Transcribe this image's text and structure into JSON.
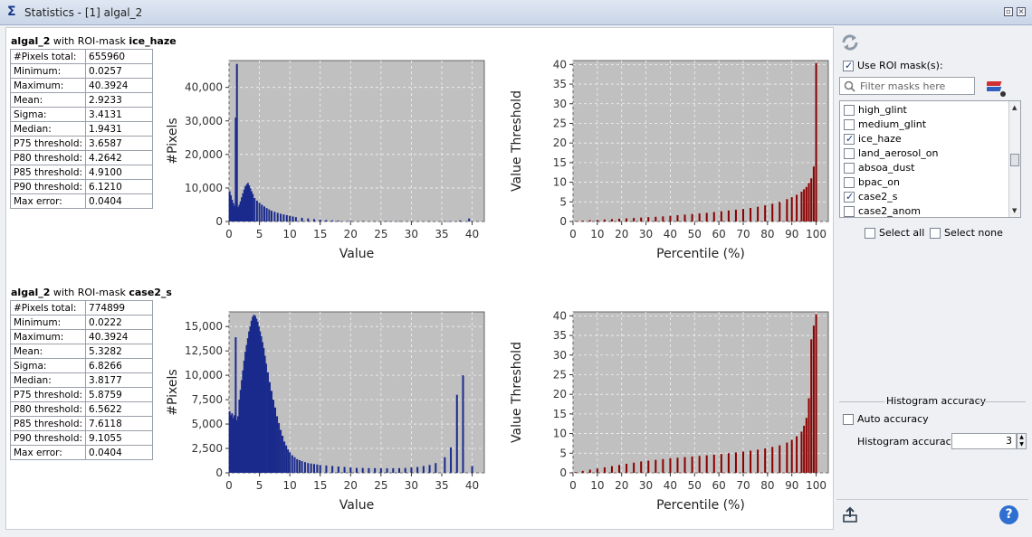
{
  "window": {
    "title": "Statistics - [1] algal_2",
    "minimize_glyph": "▫",
    "close_glyph": "×"
  },
  "blocks": [
    {
      "band": "algal_2",
      "with_text": " with ROI-mask ",
      "mask": "ice_haze",
      "stats": [
        {
          "k": "#Pixels total:",
          "v": "655960"
        },
        {
          "k": "Minimum:",
          "v": "0.0257"
        },
        {
          "k": "Maximum:",
          "v": "40.3924"
        },
        {
          "k": "Mean:",
          "v": "2.9233"
        },
        {
          "k": "Sigma:",
          "v": "3.4131"
        },
        {
          "k": "Median:",
          "v": "1.9431"
        },
        {
          "k": "P75 threshold:",
          "v": "3.6587"
        },
        {
          "k": "P80 threshold:",
          "v": "4.2642"
        },
        {
          "k": "P85 threshold:",
          "v": "4.9100"
        },
        {
          "k": "P90 threshold:",
          "v": "6.1210"
        },
        {
          "k": "Max error:",
          "v": "0.0404"
        }
      ]
    },
    {
      "band": "algal_2",
      "with_text": " with ROI-mask ",
      "mask": "case2_s",
      "stats": [
        {
          "k": "#Pixels total:",
          "v": "774899"
        },
        {
          "k": "Minimum:",
          "v": "0.0222"
        },
        {
          "k": "Maximum:",
          "v": "40.3924"
        },
        {
          "k": "Mean:",
          "v": "5.3282"
        },
        {
          "k": "Sigma:",
          "v": "6.8266"
        },
        {
          "k": "Median:",
          "v": "3.8177"
        },
        {
          "k": "P75 threshold:",
          "v": "5.8759"
        },
        {
          "k": "P80 threshold:",
          "v": "6.5622"
        },
        {
          "k": "P85 threshold:",
          "v": "7.6118"
        },
        {
          "k": "P90 threshold:",
          "v": "9.1055"
        },
        {
          "k": "Max error:",
          "v": "0.0404"
        }
      ]
    }
  ],
  "chart_data": [
    {
      "type": "bar",
      "title": "",
      "xlabel": "Value",
      "ylabel": "#Pixels",
      "xlim": [
        0,
        42
      ],
      "ylim": [
        0,
        48000
      ],
      "xticks": [
        "0",
        "5",
        "10",
        "15",
        "20",
        "25",
        "30",
        "35",
        "40"
      ],
      "yticks": [
        "0",
        "10,000",
        "20,000",
        "30,000",
        "40,000"
      ],
      "color": "#1a2a8c",
      "bg": "#c0c0c0",
      "x": [
        0.1,
        0.3,
        0.5,
        0.7,
        0.9,
        1.1,
        1.3,
        1.5,
        1.7,
        1.9,
        2.1,
        2.3,
        2.5,
        2.7,
        2.9,
        3.1,
        3.3,
        3.5,
        3.7,
        3.9,
        4.2,
        4.6,
        5.0,
        5.4,
        5.8,
        6.2,
        6.6,
        7.0,
        7.5,
        8.0,
        8.5,
        9.0,
        9.5,
        10.0,
        10.5,
        11.0,
        12.0,
        13.0,
        14.0,
        15.0,
        16.0,
        17.0,
        18.0,
        20.0,
        22.0,
        24.0,
        26.0,
        28.0,
        30.0,
        33.0,
        36.0,
        38.0,
        39.5
      ],
      "values": [
        9000,
        7800,
        6500,
        5500,
        4700,
        31000,
        47000,
        4300,
        5000,
        6000,
        7200,
        8400,
        9500,
        10500,
        11000,
        11500,
        10800,
        9900,
        9000,
        8200,
        7000,
        6200,
        5600,
        5000,
        4500,
        4000,
        3600,
        3200,
        2900,
        2600,
        2300,
        2100,
        1900,
        1700,
        1500,
        1300,
        1100,
        900,
        700,
        550,
        420,
        320,
        250,
        180,
        140,
        110,
        90,
        80,
        60,
        50,
        40,
        300,
        900
      ]
    },
    {
      "type": "bar",
      "title": "",
      "xlabel": "Percentile (%)",
      "ylabel": "Value Threshold",
      "xlim": [
        0,
        105
      ],
      "ylim": [
        0,
        41
      ],
      "xticks": [
        "0",
        "10",
        "20",
        "30",
        "40",
        "50",
        "60",
        "70",
        "80",
        "90",
        "100"
      ],
      "yticks": [
        "0",
        "5",
        "10",
        "15",
        "20",
        "25",
        "30",
        "35",
        "40"
      ],
      "color": "#8b0000",
      "bg": "#c0c0c0",
      "x": [
        1,
        4,
        7,
        10,
        13,
        16,
        19,
        22,
        25,
        28,
        31,
        34,
        37,
        40,
        43,
        46,
        49,
        52,
        55,
        58,
        61,
        64,
        67,
        70,
        73,
        76,
        79,
        82,
        85,
        88,
        90,
        92,
        94,
        95,
        96,
        97,
        98,
        99,
        100
      ],
      "values": [
        0.1,
        0.2,
        0.3,
        0.4,
        0.5,
        0.6,
        0.7,
        0.8,
        0.9,
        1.0,
        1.1,
        1.2,
        1.3,
        1.45,
        1.6,
        1.75,
        1.9,
        2.05,
        2.2,
        2.4,
        2.6,
        2.8,
        3.0,
        3.2,
        3.45,
        3.75,
        4.1,
        4.5,
        5.0,
        5.7,
        6.2,
        6.8,
        7.6,
        8.2,
        8.8,
        9.8,
        11.0,
        14.0,
        40.4
      ]
    },
    {
      "type": "bar",
      "title": "",
      "xlabel": "Value",
      "ylabel": "#Pixels",
      "xlim": [
        0,
        42
      ],
      "ylim": [
        0,
        16500
      ],
      "xticks": [
        "0",
        "5",
        "10",
        "15",
        "20",
        "25",
        "30",
        "35",
        "40"
      ],
      "yticks": [
        "0",
        "2,500",
        "5,000",
        "7,500",
        "10,000",
        "12,500",
        "15,000"
      ],
      "color": "#1a2a8c",
      "bg": "#c0c0c0",
      "x": [
        0.1,
        0.3,
        0.5,
        0.7,
        0.9,
        1.1,
        1.3,
        1.5,
        1.7,
        1.9,
        2.1,
        2.3,
        2.5,
        2.7,
        2.9,
        3.1,
        3.3,
        3.5,
        3.7,
        3.9,
        4.1,
        4.3,
        4.5,
        4.7,
        4.9,
        5.1,
        5.3,
        5.5,
        5.7,
        5.9,
        6.1,
        6.4,
        6.7,
        7.0,
        7.3,
        7.6,
        7.9,
        8.2,
        8.5,
        8.8,
        9.1,
        9.4,
        9.7,
        10.0,
        10.4,
        10.8,
        11.2,
        11.6,
        12.0,
        12.5,
        13.0,
        13.5,
        14.0,
        14.5,
        15.0,
        16.0,
        17.0,
        18.0,
        19.0,
        20.0,
        21.0,
        22.0,
        23.0,
        24.0,
        25.0,
        26.0,
        27.0,
        28.0,
        29.0,
        30.0,
        31.0,
        32.0,
        33.0,
        34.0,
        35.5,
        36.5,
        37.5,
        38.5,
        40.0
      ],
      "values": [
        6300,
        5900,
        6100,
        5600,
        5900,
        13900,
        5400,
        5800,
        7500,
        8500,
        9500,
        10500,
        11500,
        12400,
        13100,
        13800,
        14500,
        15000,
        15600,
        16000,
        16200,
        16100,
        15800,
        15500,
        15000,
        14500,
        14000,
        13400,
        12800,
        12000,
        11200,
        10300,
        9300,
        8400,
        7500,
        6700,
        5800,
        5100,
        4400,
        3800,
        3200,
        2800,
        2400,
        2100,
        1800,
        1600,
        1400,
        1300,
        1200,
        1100,
        1000,
        950,
        900,
        850,
        800,
        750,
        700,
        650,
        600,
        550,
        500,
        500,
        480,
        480,
        460,
        460,
        470,
        480,
        500,
        550,
        600,
        700,
        800,
        1000,
        1600,
        2600,
        8000,
        10000,
        700
      ]
    },
    {
      "type": "bar",
      "title": "",
      "xlabel": "Percentile (%)",
      "ylabel": "Value Threshold",
      "xlim": [
        0,
        105
      ],
      "ylim": [
        0,
        41
      ],
      "xticks": [
        "0",
        "10",
        "20",
        "30",
        "40",
        "50",
        "60",
        "70",
        "80",
        "90",
        "100"
      ],
      "yticks": [
        "0",
        "5",
        "10",
        "15",
        "20",
        "25",
        "30",
        "35",
        "40"
      ],
      "color": "#8b0000",
      "bg": "#c0c0c0",
      "x": [
        1,
        4,
        7,
        10,
        13,
        16,
        19,
        22,
        25,
        28,
        31,
        34,
        37,
        40,
        43,
        46,
        49,
        52,
        55,
        58,
        61,
        64,
        67,
        70,
        73,
        76,
        79,
        82,
        85,
        88,
        90,
        92,
        94,
        95,
        96,
        97,
        98,
        99,
        100
      ],
      "values": [
        0.2,
        0.5,
        0.8,
        1.1,
        1.4,
        1.7,
        2.0,
        2.3,
        2.6,
        2.9,
        3.1,
        3.3,
        3.5,
        3.7,
        3.85,
        4.0,
        4.15,
        4.3,
        4.45,
        4.6,
        4.8,
        5.0,
        5.2,
        5.4,
        5.65,
        5.9,
        6.2,
        6.6,
        7.0,
        7.7,
        8.4,
        9.3,
        10.5,
        12.0,
        14.0,
        19.0,
        34.0,
        37.5,
        40.4
      ]
    }
  ],
  "side": {
    "use_roi_label": "Use ROI mask(s):",
    "use_roi_checked": true,
    "filter_placeholder": "Filter masks here",
    "masks": [
      {
        "name": "high_glint",
        "checked": false
      },
      {
        "name": "medium_glint",
        "checked": false
      },
      {
        "name": "ice_haze",
        "checked": true
      },
      {
        "name": "land_aerosol_on",
        "checked": false
      },
      {
        "name": "absoa_dust",
        "checked": false
      },
      {
        "name": "bpac_on",
        "checked": false
      },
      {
        "name": "case2_s",
        "checked": true
      },
      {
        "name": "case2_anom",
        "checked": false
      }
    ],
    "select_all": "Select all",
    "select_none": "Select none",
    "accuracy_title": "Histogram accuracy",
    "auto_accuracy": "Auto accuracy",
    "accuracy_label": "Histogram accuracy:",
    "accuracy_value": "3",
    "help_glyph": "?"
  }
}
